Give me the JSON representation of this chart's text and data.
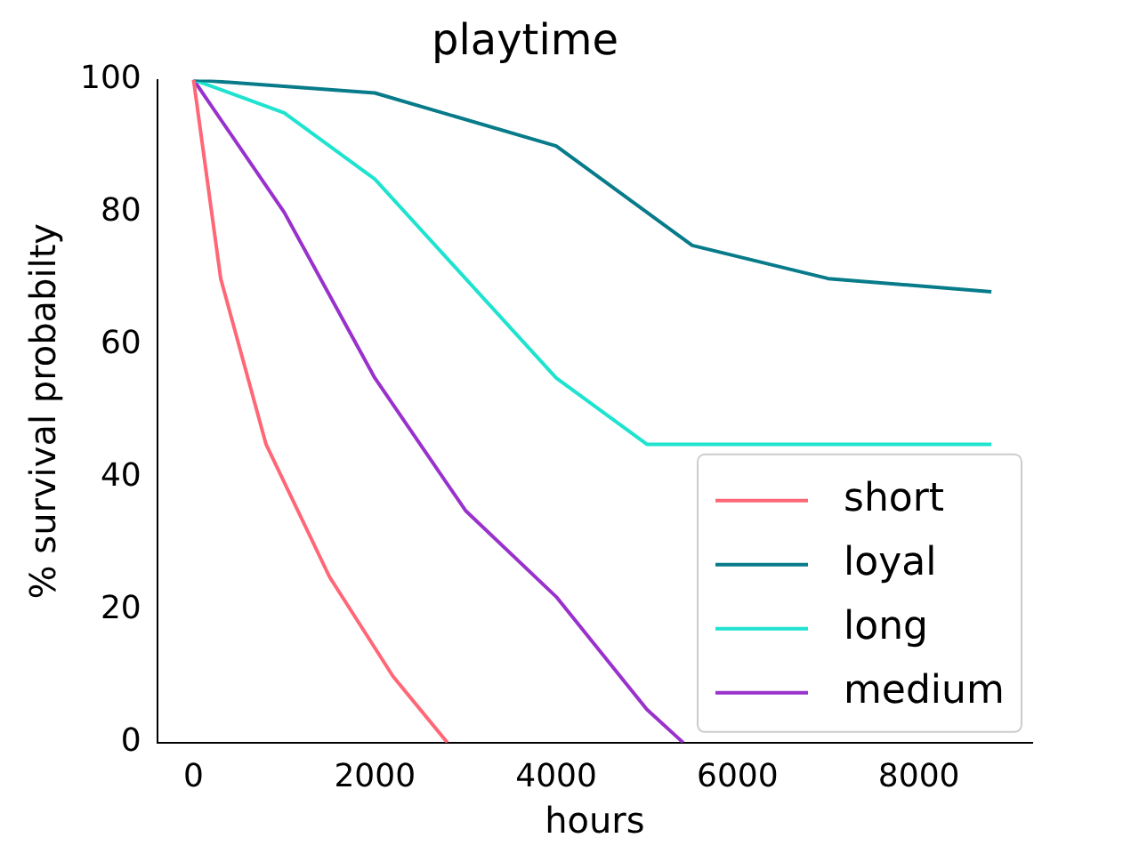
{
  "chart_data": {
    "type": "line",
    "title": "playtime",
    "xlabel": "hours",
    "ylabel": "% survival probabilty",
    "xlim": [
      -400,
      9250
    ],
    "xticks": [
      0,
      2000,
      4000,
      6000,
      8000
    ],
    "ylim": [
      0,
      100
    ],
    "yticks": [
      0,
      20,
      40,
      60,
      80,
      100
    ],
    "grid": false,
    "legend": "bottom right",
    "marker": "none",
    "line_style": "solid",
    "series": [
      {
        "name": "short",
        "color": "#ff6777",
        "x": [
          0,
          300,
          800,
          1500,
          2200,
          2800
        ],
        "values": [
          100,
          70,
          45,
          25,
          10,
          0
        ]
      },
      {
        "name": "loyal",
        "color": "#077b8a",
        "x": [
          0,
          2000,
          4000,
          5500,
          7000,
          8800
        ],
        "values": [
          100,
          98,
          90,
          75,
          70,
          68
        ]
      },
      {
        "name": "long",
        "color": "#1ee3cf",
        "x": [
          0,
          1000,
          2000,
          3000,
          4000,
          5000,
          8800
        ],
        "values": [
          100,
          95,
          85,
          70,
          55,
          45,
          45
        ]
      },
      {
        "name": "medium",
        "color": "#9932cc",
        "x": [
          0,
          1000,
          2000,
          3000,
          4000,
          5000,
          5400
        ],
        "values": [
          100,
          80,
          55,
          35,
          22,
          5,
          0
        ]
      }
    ]
  }
}
